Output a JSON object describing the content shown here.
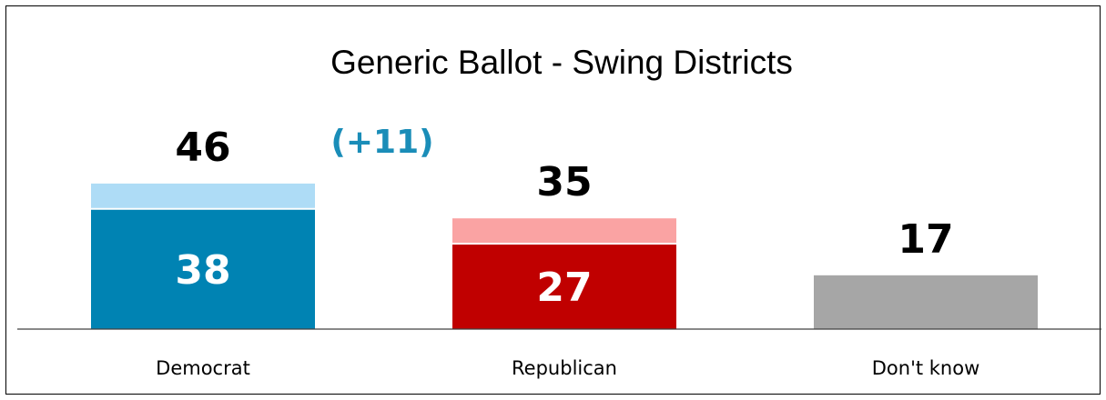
{
  "chart_data": {
    "type": "bar",
    "title": "Generic Ballot - Swing Districts",
    "categories": [
      "Democrat",
      "Republican",
      "Don't know"
    ],
    "series": [
      {
        "values": [
          38,
          27,
          null
        ]
      },
      {
        "values": [
          46,
          35,
          17
        ]
      }
    ],
    "total_labels": [
      "46",
      "35",
      "17"
    ],
    "inner_labels": [
      "38",
      "27",
      ""
    ],
    "margin_annotation": "(+11)",
    "ylim": [
      0,
      60
    ],
    "grid": false,
    "legend": "none",
    "colors": {
      "democrat_inner": "#0083B3",
      "democrat_outer": "#AEDCF6",
      "republican_inner": "#C00000",
      "republican_outer": "#FAA3A3",
      "dont_know": "#A6A6A6",
      "margin_text": "#1A8DB8"
    }
  }
}
